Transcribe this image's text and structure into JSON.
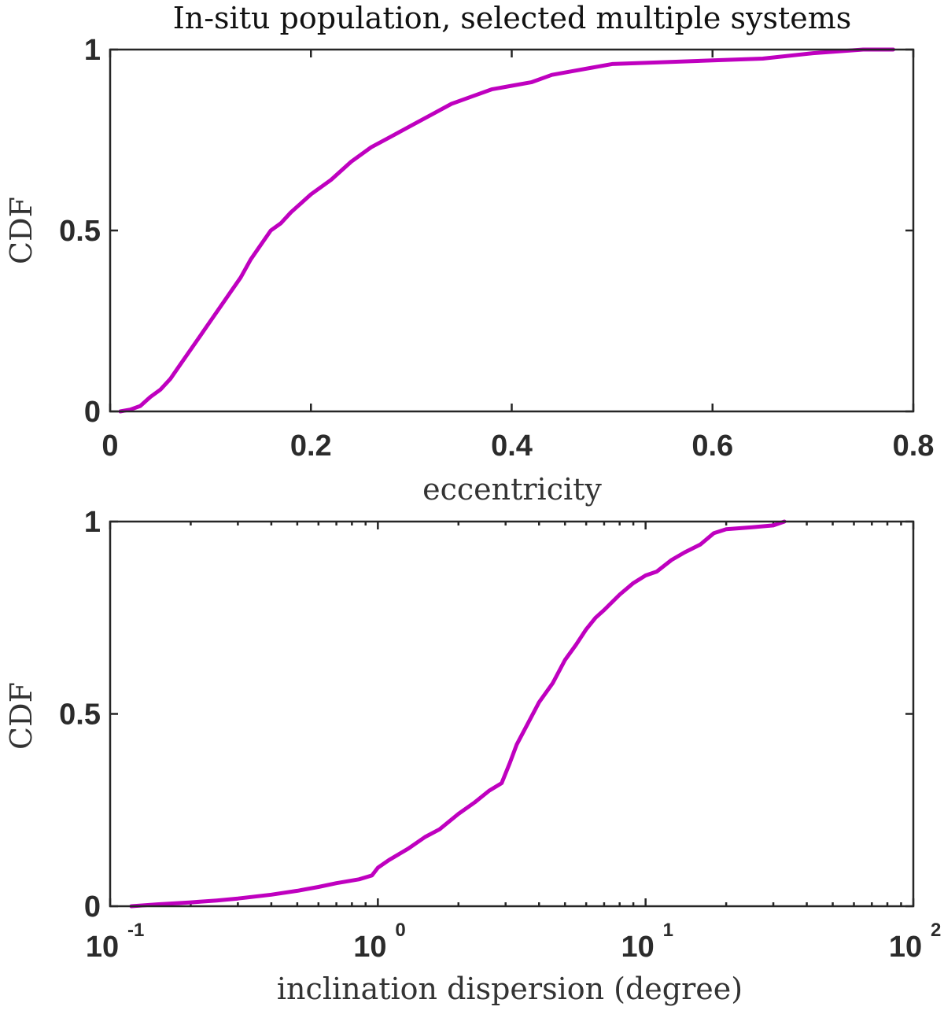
{
  "chart_data": [
    {
      "type": "line",
      "title": "In-situ population, selected multiple systems",
      "xlabel": "eccentricity",
      "ylabel": "CDF",
      "xscale": "linear",
      "xlim": [
        0,
        0.8
      ],
      "ylim": [
        0,
        1
      ],
      "xticks": [
        0,
        0.2,
        0.4,
        0.6,
        0.8
      ],
      "xtick_labels": [
        "0",
        "0.2",
        "0.4",
        "0.6",
        "0.8"
      ],
      "yticks": [
        0,
        0.5,
        1
      ],
      "ytick_labels": [
        "0",
        "0.5",
        "1"
      ],
      "grid": false,
      "color": "#bf00bf",
      "series": [
        {
          "x": [
            0.01,
            0.02,
            0.03,
            0.04,
            0.05,
            0.06,
            0.07,
            0.08,
            0.09,
            0.1,
            0.11,
            0.12,
            0.13,
            0.14,
            0.15,
            0.16,
            0.17,
            0.18,
            0.2,
            0.22,
            0.24,
            0.26,
            0.28,
            0.3,
            0.32,
            0.34,
            0.36,
            0.38,
            0.4,
            0.42,
            0.44,
            0.46,
            0.48,
            0.5,
            0.55,
            0.6,
            0.65,
            0.7,
            0.75,
            0.78
          ],
          "y": [
            0.0,
            0.005,
            0.015,
            0.04,
            0.06,
            0.09,
            0.13,
            0.17,
            0.21,
            0.25,
            0.29,
            0.33,
            0.37,
            0.42,
            0.46,
            0.5,
            0.52,
            0.55,
            0.6,
            0.64,
            0.69,
            0.73,
            0.76,
            0.79,
            0.82,
            0.85,
            0.87,
            0.89,
            0.9,
            0.91,
            0.93,
            0.94,
            0.95,
            0.96,
            0.965,
            0.97,
            0.975,
            0.99,
            1.0,
            1.0
          ]
        }
      ]
    },
    {
      "type": "line",
      "xlabel": "inclination dispersion (degree)",
      "ylabel": "CDF",
      "xscale": "log",
      "xlim": [
        0.1,
        100
      ],
      "ylim": [
        0,
        1
      ],
      "xticks": [
        0.1,
        1,
        10,
        100
      ],
      "xtick_labels": [
        {
          "base": "10",
          "exp": "-1"
        },
        {
          "base": "10",
          "exp": "0"
        },
        {
          "base": "10",
          "exp": "1"
        },
        {
          "base": "10",
          "exp": "2"
        }
      ],
      "yticks": [
        0,
        0.5,
        1
      ],
      "ytick_labels": [
        "0",
        "0.5",
        "1"
      ],
      "grid": false,
      "color": "#bf00bf",
      "series": [
        {
          "x": [
            0.12,
            0.15,
            0.2,
            0.25,
            0.3,
            0.4,
            0.5,
            0.6,
            0.7,
            0.85,
            0.95,
            1.0,
            1.1,
            1.3,
            1.5,
            1.7,
            2.0,
            2.3,
            2.6,
            2.9,
            3.1,
            3.3,
            3.6,
            4.0,
            4.5,
            5.0,
            5.5,
            6.0,
            6.5,
            7.0,
            8.0,
            9.0,
            10.0,
            11.0,
            12.5,
            14.0,
            16.0,
            18.0,
            20.0,
            25.0,
            30.0,
            33.0
          ],
          "y": [
            0.0,
            0.005,
            0.01,
            0.015,
            0.02,
            0.03,
            0.04,
            0.05,
            0.06,
            0.07,
            0.08,
            0.1,
            0.12,
            0.15,
            0.18,
            0.2,
            0.24,
            0.27,
            0.3,
            0.32,
            0.37,
            0.42,
            0.47,
            0.53,
            0.58,
            0.64,
            0.68,
            0.72,
            0.75,
            0.77,
            0.81,
            0.84,
            0.86,
            0.87,
            0.9,
            0.92,
            0.94,
            0.97,
            0.98,
            0.985,
            0.99,
            1.0
          ]
        }
      ]
    }
  ]
}
